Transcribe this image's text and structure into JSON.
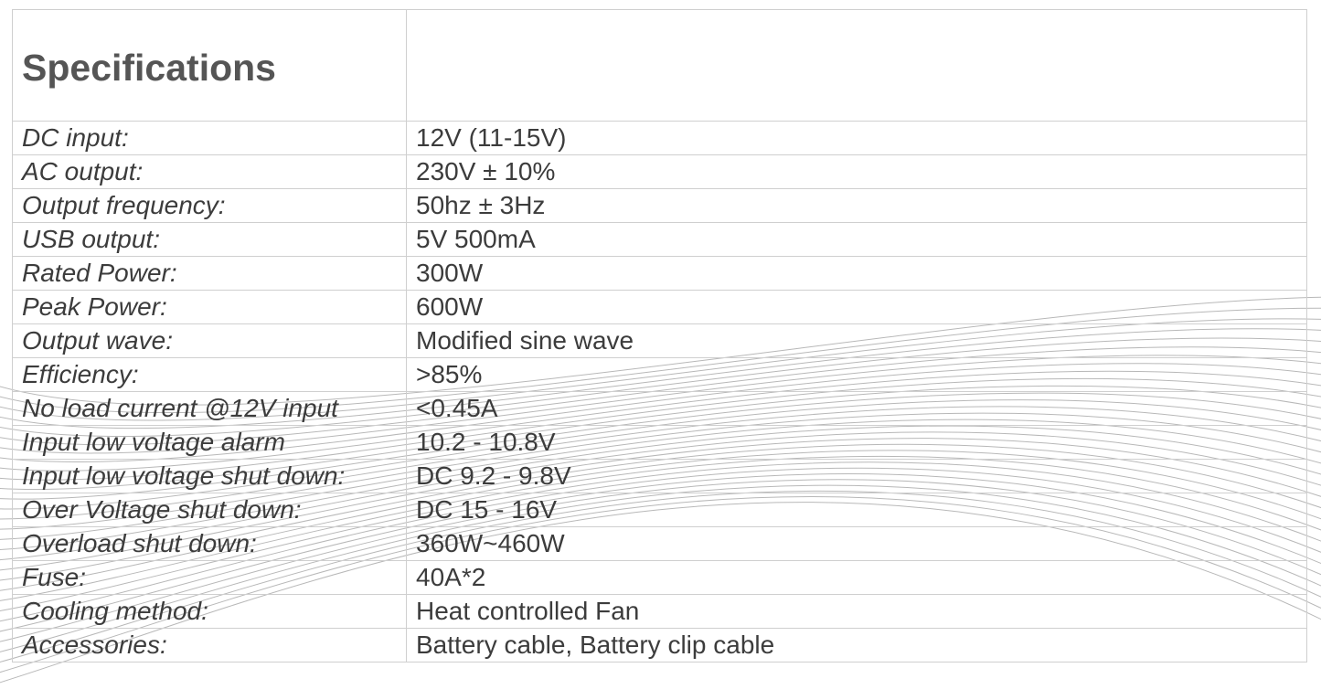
{
  "title": "Specifications",
  "header_right": "",
  "rows": [
    {
      "label": "DC input:",
      "value": "12V (11-15V)"
    },
    {
      "label": "AC output:",
      "value": "230V ± 10%"
    },
    {
      "label": "Output frequency:",
      "value": "50hz ± 3Hz"
    },
    {
      "label": "USB output:",
      "value": "5V 500mA"
    },
    {
      "label": "Rated Power:",
      "value": "300W"
    },
    {
      "label": "Peak Power:",
      "value": "600W"
    },
    {
      "label": "Output wave:",
      "value": "Modified sine wave"
    },
    {
      "label": "Efficiency:",
      "value": ">85%"
    },
    {
      "label": "No load current @12V input",
      "value": "<0.45A"
    },
    {
      "label": "Input low voltage alarm",
      "value": "10.2 - 10.8V"
    },
    {
      "label": "Input low voltage shut down:",
      "value": "DC 9.2 - 9.8V"
    },
    {
      "label": "Over Voltage shut down:",
      "value": "DC 15 - 16V"
    },
    {
      "label": "Overload shut down:",
      "value": "360W~460W"
    },
    {
      "label": "Fuse:",
      "value": "40A*2"
    },
    {
      "label": "Cooling method:",
      "value": "Heat controlled Fan"
    },
    {
      "label": "Accessories:",
      "value": "Battery cable, Battery clip cable"
    }
  ],
  "colors": {
    "text": "#3c3c3c",
    "title": "#555555",
    "border": "#cfcfcf",
    "wave": "#b8b8b8"
  }
}
